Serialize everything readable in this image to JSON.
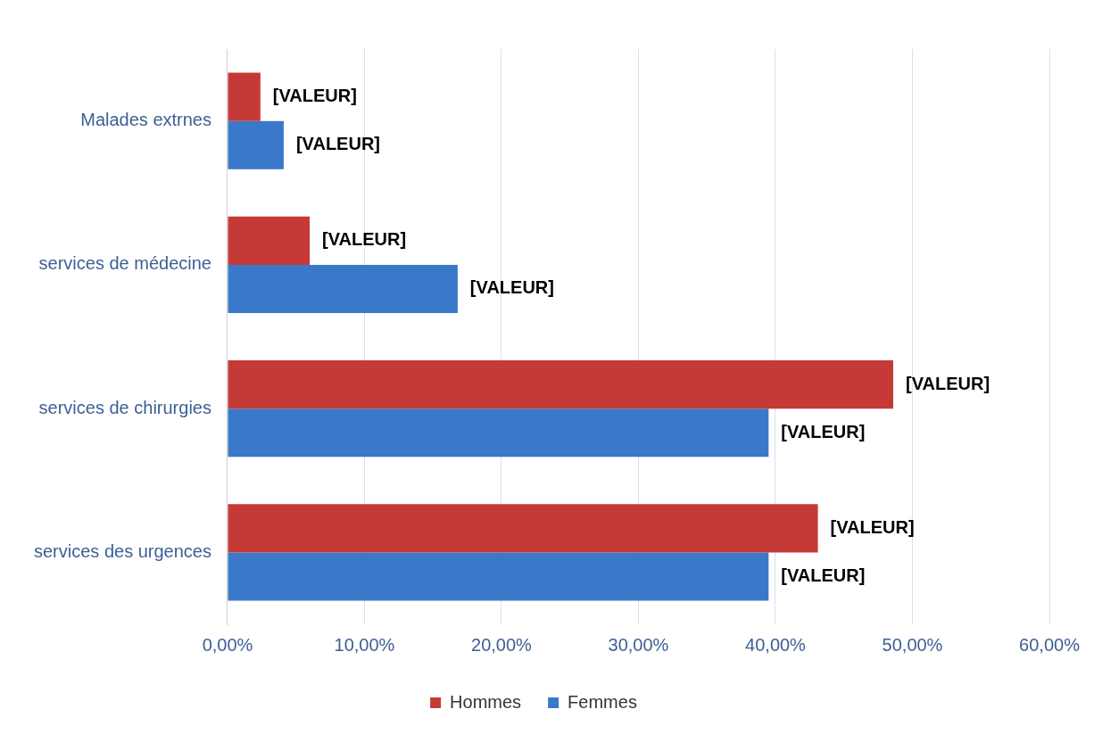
{
  "chart_data": {
    "type": "bar",
    "orientation": "horizontal",
    "categories": [
      "Malades extrnes",
      "services de médecine",
      "services de chirurgies",
      "services des urgences"
    ],
    "series": [
      {
        "name": "Hommes",
        "color": "#c53a37",
        "values": [
          2.4,
          6.0,
          48.6,
          43.1
        ],
        "value_labels": [
          "[VALEUR]",
          "[VALEUR]",
          "[VALEUR]",
          "[VALEUR]"
        ]
      },
      {
        "name": "Femmes",
        "color": "#3a78c9",
        "values": [
          4.1,
          16.8,
          39.5,
          39.5
        ],
        "value_labels": [
          "[VALEUR]",
          "[VALEUR]",
          "[VALEUR]",
          "[VALEUR]"
        ]
      }
    ],
    "xlim": [
      0,
      60
    ],
    "xticks": [
      {
        "value": 0,
        "label": "0,00%"
      },
      {
        "value": 10,
        "label": "10,00%"
      },
      {
        "value": 20,
        "label": "20,00%"
      },
      {
        "value": 30,
        "label": "30,00%"
      },
      {
        "value": 40,
        "label": "40,00%"
      },
      {
        "value": 50,
        "label": "50,00%"
      },
      {
        "value": 60,
        "label": "60,00%"
      }
    ],
    "grid": "x",
    "legend": "bottom"
  }
}
